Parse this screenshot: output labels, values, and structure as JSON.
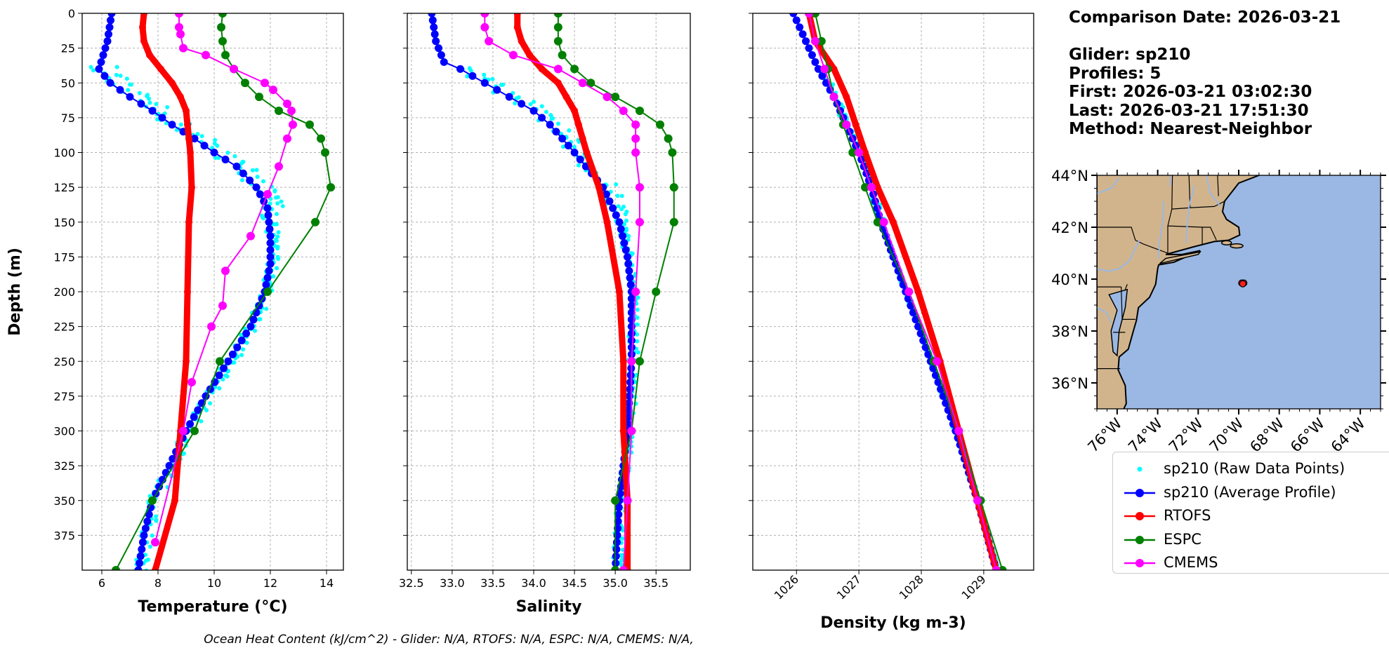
{
  "info": {
    "comparison": "Comparison Date: 2026-03-21",
    "glider": "Glider: sp210",
    "profiles": "Profiles: 5",
    "first": "First: 2026-03-21 03:02:30",
    "last": "Last: 2026-03-21 17:51:30",
    "method": "Method: Nearest-Neighbor"
  },
  "footer": "Ocean Heat Content (kJ/cm^2) - Glider: N/A,  RTOFS: N/A,  ESPC: N/A,  CMEMS: N/A,",
  "legend": [
    {
      "label": "sp210 (Raw Data Points)",
      "color": "#00ffff",
      "style": "points"
    },
    {
      "label": "sp210 (Average Profile)",
      "color": "#0000ff",
      "style": "line-marker"
    },
    {
      "label": "RTOFS",
      "color": "#ff0000",
      "style": "line-marker"
    },
    {
      "label": "ESPC",
      "color": "#008000",
      "style": "line-marker"
    },
    {
      "label": "CMEMS",
      "color": "#ff00ff",
      "style": "line-marker"
    }
  ],
  "map": {
    "lat_ticks": [
      "44°N",
      "42°N",
      "40°N",
      "38°N",
      "36°N"
    ],
    "lat_values": [
      44,
      42,
      40,
      38,
      36
    ],
    "lon_ticks": [
      "76°W",
      "74°W",
      "72°W",
      "70°W",
      "68°W",
      "66°W",
      "64°W"
    ],
    "lon_values": [
      -76,
      -74,
      -72,
      -70,
      -68,
      -66,
      -64
    ],
    "extent": {
      "lon": [
        -77,
        -63
      ],
      "lat": [
        35,
        44
      ]
    },
    "land_color": "#d2b48c",
    "ocean_color": "#9ab8e3",
    "glider_points": [
      [
        -69.85,
        39.85
      ],
      [
        -69.75,
        39.85
      ],
      [
        -69.8,
        39.82
      ]
    ]
  },
  "chart_data": [
    {
      "type": "line",
      "xlabel": "Temperature (°C)",
      "ylabel": "Depth (m)",
      "xlim": [
        5.3,
        14.6
      ],
      "ylim": [
        400,
        0
      ],
      "xticks": [
        6,
        8,
        10,
        12,
        14
      ],
      "yticks": [
        0,
        25,
        50,
        75,
        100,
        125,
        150,
        175,
        200,
        225,
        250,
        275,
        300,
        325,
        350,
        375
      ],
      "grid": true,
      "series": [
        {
          "name": "RTOFS",
          "color": "#ff0000",
          "depth": [
            0,
            10,
            20,
            30,
            40,
            50,
            60,
            70,
            80,
            90,
            100,
            125,
            150,
            200,
            250,
            300,
            350,
            400
          ],
          "values": [
            7.5,
            7.45,
            7.5,
            7.7,
            8.1,
            8.5,
            8.8,
            9.0,
            9.05,
            9.1,
            9.15,
            9.2,
            9.1,
            9.05,
            9.0,
            8.8,
            8.6,
            7.9
          ]
        },
        {
          "name": "ESPC",
          "color": "#008000",
          "depth": [
            0,
            10,
            20,
            30,
            40,
            50,
            60,
            70,
            80,
            90,
            100,
            125,
            150,
            200,
            250,
            300,
            350,
            400
          ],
          "values": [
            10.3,
            10.25,
            10.3,
            10.4,
            10.7,
            11.1,
            11.6,
            12.3,
            13.4,
            13.8,
            13.95,
            14.15,
            13.6,
            11.9,
            10.2,
            9.3,
            7.8,
            6.5
          ]
        },
        {
          "name": "CMEMS",
          "color": "#ff00ff",
          "depth": [
            0,
            10,
            15,
            25,
            30,
            40,
            50,
            55,
            65,
            70,
            80,
            90,
            110,
            130,
            160,
            185,
            210,
            225,
            265,
            300,
            380
          ],
          "values": [
            8.75,
            8.75,
            8.8,
            8.9,
            9.7,
            10.7,
            11.8,
            12.1,
            12.6,
            12.75,
            12.8,
            12.6,
            12.3,
            11.9,
            11.3,
            10.4,
            10.3,
            9.9,
            9.2,
            8.9,
            7.9
          ]
        }
      ]
    },
    {
      "type": "line",
      "xlabel": "Salinity",
      "xlim": [
        32.45,
        35.92
      ],
      "ylim": [
        400,
        0
      ],
      "xticks": [
        32.5,
        33.0,
        33.5,
        34.0,
        34.5,
        35.0,
        35.5
      ],
      "xticklabels": [
        "32.5",
        "33.0",
        "33.5",
        "34.0",
        "34.5",
        "35.0",
        "35.5"
      ],
      "grid": true,
      "series": [
        {
          "name": "RTOFS",
          "color": "#ff0000",
          "depth": [
            0,
            10,
            20,
            30,
            40,
            50,
            60,
            70,
            80,
            90,
            100,
            125,
            150,
            200,
            250,
            300,
            350,
            400
          ],
          "values": [
            33.8,
            33.8,
            33.85,
            33.95,
            34.1,
            34.3,
            34.4,
            34.5,
            34.55,
            34.6,
            34.65,
            34.8,
            34.9,
            35.05,
            35.1,
            35.1,
            35.15,
            35.15
          ]
        },
        {
          "name": "ESPC",
          "color": "#008000",
          "depth": [
            0,
            10,
            20,
            30,
            40,
            50,
            60,
            70,
            80,
            90,
            100,
            125,
            150,
            200,
            250,
            300,
            350,
            400
          ],
          "values": [
            34.3,
            34.3,
            34.3,
            34.35,
            34.5,
            34.7,
            35.0,
            35.3,
            35.55,
            35.65,
            35.7,
            35.72,
            35.72,
            35.5,
            35.3,
            35.2,
            35.0,
            35.0
          ]
        },
        {
          "name": "CMEMS",
          "color": "#ff00ff",
          "depth": [
            0,
            10,
            20,
            30,
            40,
            50,
            60,
            70,
            80,
            90,
            100,
            125,
            150,
            200,
            250,
            300,
            350,
            400
          ],
          "values": [
            33.4,
            33.4,
            33.45,
            33.75,
            34.3,
            34.6,
            34.9,
            35.1,
            35.25,
            35.25,
            35.25,
            35.3,
            35.3,
            35.25,
            35.2,
            35.2,
            35.15,
            35.1
          ]
        }
      ]
    },
    {
      "type": "line",
      "xlabel": "Density (kg m-3)",
      "xlim": [
        1025.3,
        1029.8
      ],
      "ylim": [
        400,
        0
      ],
      "xticks": [
        1026,
        1027,
        1028,
        1029
      ],
      "grid": true,
      "series": [
        {
          "name": "RTOFS",
          "color": "#ff0000",
          "depth": [
            0,
            20,
            40,
            60,
            80,
            100,
            125,
            150,
            200,
            250,
            300,
            350,
            400
          ],
          "values": [
            1026.2,
            1026.3,
            1026.6,
            1026.8,
            1026.95,
            1027.1,
            1027.3,
            1027.55,
            1027.95,
            1028.3,
            1028.6,
            1028.9,
            1029.2
          ]
        },
        {
          "name": "ESPC",
          "color": "#008000",
          "depth": [
            0,
            20,
            40,
            60,
            80,
            100,
            125,
            150,
            200,
            250,
            300,
            350,
            400
          ],
          "values": [
            1026.3,
            1026.4,
            1026.5,
            1026.6,
            1026.75,
            1026.9,
            1027.1,
            1027.3,
            1027.8,
            1028.2,
            1028.6,
            1028.95,
            1029.3
          ]
        },
        {
          "name": "CMEMS",
          "color": "#ff00ff",
          "depth": [
            0,
            20,
            40,
            60,
            80,
            100,
            125,
            150,
            200,
            250,
            300,
            350,
            400
          ],
          "values": [
            1026.2,
            1026.3,
            1026.45,
            1026.6,
            1026.8,
            1027.0,
            1027.2,
            1027.4,
            1027.8,
            1028.25,
            1028.6,
            1028.9,
            1029.2
          ]
        }
      ]
    }
  ]
}
